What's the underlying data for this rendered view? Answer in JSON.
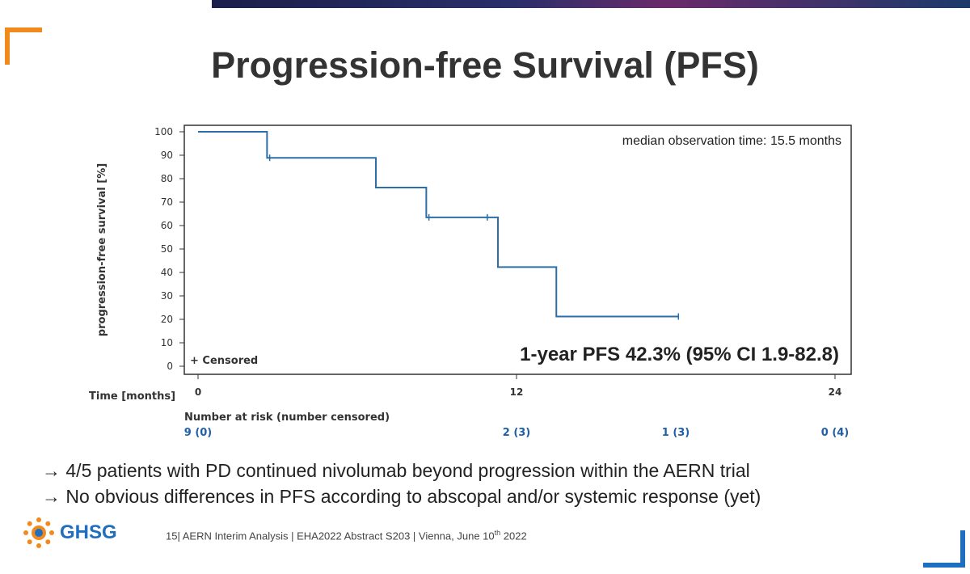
{
  "slide": {
    "title": "Progression-free Survival (PFS)",
    "bullets": [
      "→ 4/5 patients with PD continued nivolumab beyond progression within the AERN trial",
      "→ No obvious differences in PFS according to abscopal and/or systemic response (yet)"
    ],
    "footer": {
      "logo_text": "GHSG",
      "text": "15| AERN Interim Analysis | EHA2022 Abstract S203 | Vienna, June 10",
      "text_sup": "th",
      "text_end": " 2022"
    },
    "colors": {
      "accent_orange": "#f08a1c",
      "accent_blue": "#1f6fc0",
      "curve": "#2b6ea8"
    }
  },
  "chart_data": {
    "type": "line",
    "subtype": "kaplan-meier step curve",
    "ylabel": "progression-free survival [%]",
    "xlabel": "Time [months]",
    "xlim": [
      0,
      24
    ],
    "ylim": [
      0,
      100
    ],
    "x_ticks": [
      "0",
      "12",
      "24"
    ],
    "y_ticks": [
      "0",
      "10",
      "20",
      "30",
      "40",
      "50",
      "60",
      "70",
      "80",
      "90",
      "100"
    ],
    "series": [
      {
        "steps": [
          {
            "x": 0,
            "y": 100
          },
          {
            "x": 2.6,
            "y": 88.9
          },
          {
            "x": 6.7,
            "y": 76.2
          },
          {
            "x": 8.6,
            "y": 63.5
          },
          {
            "x": 11.3,
            "y": 42.3
          },
          {
            "x": 13.5,
            "y": 21.2
          },
          {
            "x": 18.1,
            "y": 21.2
          }
        ],
        "censored": [
          {
            "x": 2.7,
            "y": 88.9
          },
          {
            "x": 8.7,
            "y": 63.5
          },
          {
            "x": 10.9,
            "y": 63.5
          },
          {
            "x": 18.1,
            "y": 21.2
          }
        ]
      }
    ],
    "annotation_top": "median observation time: 15.5 months",
    "annotation_pfs": "1-year PFS 42.3% (95% CI 1.9-82.8)",
    "legend_censored": "+ Censored",
    "risk_table": {
      "title": "Number at risk (number censored)",
      "entries": [
        {
          "x": 0,
          "label": "9 (0)"
        },
        {
          "x": 12,
          "label": "2 (3)"
        },
        {
          "x": 18,
          "label": "1 (3)"
        },
        {
          "x": 24,
          "label": "0 (4)"
        }
      ]
    }
  }
}
